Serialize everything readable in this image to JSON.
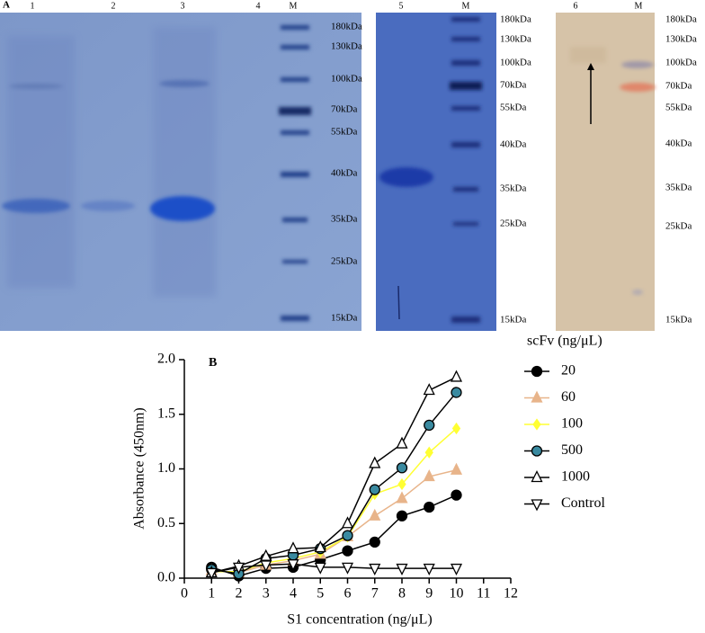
{
  "panel_a": {
    "label": "A",
    "gels": [
      {
        "lanes": [
          "1",
          "2",
          "3",
          "4",
          "M"
        ],
        "markers": [
          "180kDa",
          "130kDa",
          "100kDa",
          "70kDa",
          "55kDa",
          "40kDa",
          "35kDa",
          "25kDa",
          "15kDa"
        ]
      },
      {
        "lanes": [
          "5",
          "M"
        ],
        "markers": [
          "180kDa",
          "130kDa",
          "100kDa",
          "70kDa",
          "55kDa",
          "40kDa",
          "35kDa",
          "25kDa",
          "15kDa"
        ]
      },
      {
        "lanes": [
          "6",
          "M"
        ],
        "markers": [
          "180kDa",
          "130kDa",
          "100kDa",
          "70kDa",
          "55kDa",
          "40kDa",
          "35kDa",
          "25kDa",
          "15kDa"
        ]
      }
    ]
  },
  "chart_data": {
    "type": "line",
    "panel_label": "B",
    "x_label": "S1 concentration (ng/μL)",
    "y_label": "Absorbance (450nm)",
    "legend_title": "scFv (ng/μL)",
    "x": [
      1,
      2,
      3,
      4,
      5,
      6,
      7,
      8,
      9,
      10
    ],
    "series": [
      {
        "name": "20",
        "color": "#000000",
        "fill": "#000000",
        "marker": "circle",
        "values": [
          0.1,
          0.02,
          0.09,
          0.1,
          0.17,
          0.25,
          0.33,
          0.57,
          0.65,
          0.76
        ]
      },
      {
        "name": "60",
        "color": "#e8b48a",
        "fill": "#e8b48a",
        "marker": "triangle",
        "values": [
          0.07,
          0.05,
          0.12,
          0.16,
          0.22,
          0.38,
          0.57,
          0.73,
          0.93,
          0.99
        ]
      },
      {
        "name": "100",
        "color": "#ffff33",
        "fill": "#ffff33",
        "marker": "diamond",
        "values": [
          0.06,
          0.06,
          0.14,
          0.18,
          0.24,
          0.38,
          0.77,
          0.86,
          1.15,
          1.37
        ]
      },
      {
        "name": "500",
        "color": "#000000",
        "fill": "#3a8aa0",
        "marker": "circle",
        "values": [
          0.08,
          0.04,
          0.18,
          0.21,
          0.27,
          0.39,
          0.81,
          1.01,
          1.4,
          1.7
        ]
      },
      {
        "name": "1000",
        "color": "#000000",
        "fill": "#ffffff",
        "marker": "triangle",
        "values": [
          0.05,
          0.11,
          0.2,
          0.27,
          0.28,
          0.5,
          1.05,
          1.23,
          1.72,
          1.84
        ]
      },
      {
        "name": "Control",
        "color": "#000000",
        "fill": "#ffffff",
        "marker": "triangle-down",
        "values": [
          0.05,
          0.1,
          0.12,
          0.13,
          0.1,
          0.1,
          0.09,
          0.09,
          0.09,
          0.09
        ]
      }
    ],
    "xlim": [
      0,
      12
    ],
    "xticks": [
      0,
      1,
      2,
      3,
      4,
      5,
      6,
      7,
      8,
      9,
      10,
      11,
      12
    ],
    "ylim": [
      0,
      2
    ],
    "yticks": [
      {
        "value": 0,
        "label": "0.0"
      },
      0.5,
      {
        "value": 1,
        "label": "1.0"
      },
      1.5,
      {
        "value": 2,
        "label": "2.0"
      }
    ],
    "grid": false,
    "legend": "right"
  }
}
